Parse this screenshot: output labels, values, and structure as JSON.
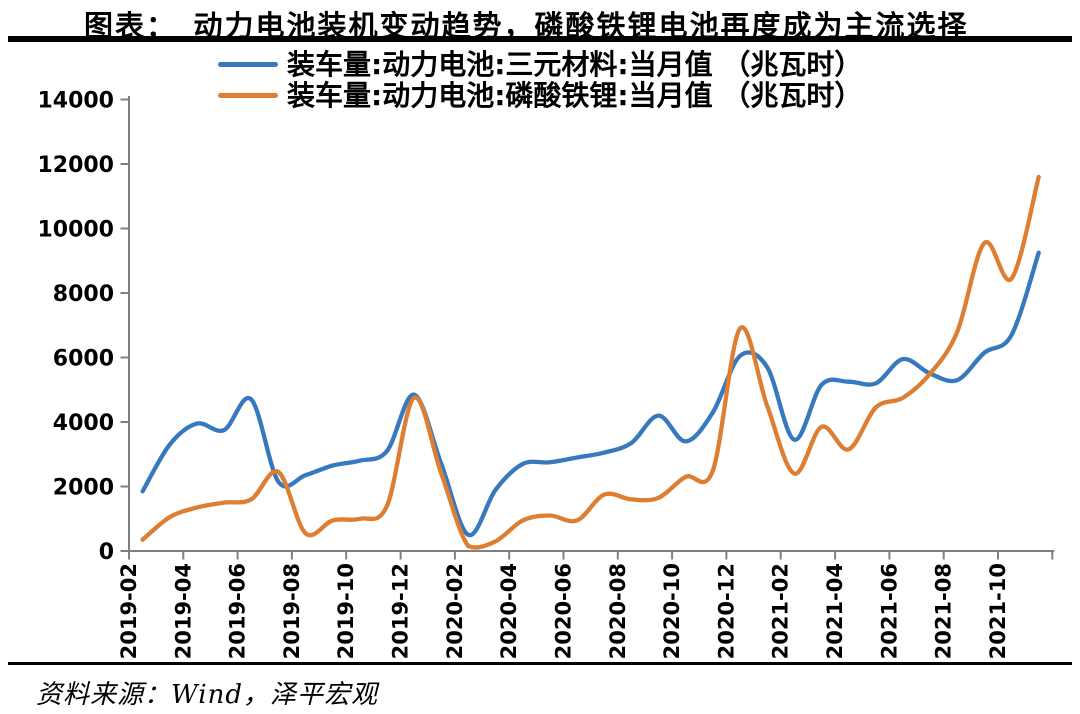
{
  "header": {
    "title": "图表：　动力电池装机变动趋势，磷酸铁锂电池再度成为主流选择"
  },
  "footer": {
    "source": "资料来源：Wind，泽平宏观"
  },
  "chart_data": {
    "type": "line",
    "title": "动力电池装机变动趋势，磷酸铁锂电池再度成为主流选择",
    "smooth": true,
    "grid": false,
    "legend_position": "top-left",
    "axis_color": "#7f7f7f",
    "ylim": [
      0,
      14000
    ],
    "y_ticks": [
      0,
      2000,
      4000,
      6000,
      8000,
      10000,
      12000,
      14000
    ],
    "x": [
      "2019-02",
      "2019-03",
      "2019-04",
      "2019-05",
      "2019-06",
      "2019-07",
      "2019-08",
      "2019-09",
      "2019-10",
      "2019-11",
      "2019-12",
      "2020-01",
      "2020-02",
      "2020-03",
      "2020-04",
      "2020-05",
      "2020-06",
      "2020-07",
      "2020-08",
      "2020-09",
      "2020-10",
      "2020-11",
      "2020-12",
      "2021-01",
      "2021-02",
      "2021-03",
      "2021-04",
      "2021-05",
      "2021-06",
      "2021-07",
      "2021-08",
      "2021-09",
      "2021-10",
      "2021-11"
    ],
    "x_tick_labels": [
      "2019-02",
      "2019-04",
      "2019-06",
      "2019-08",
      "2019-10",
      "2019-12",
      "2020-02",
      "2020-04",
      "2020-06",
      "2020-08",
      "2020-10",
      "2020-12",
      "2021-02",
      "2021-04",
      "2021-06",
      "2021-08",
      "2021-10"
    ],
    "series": [
      {
        "name": "装车量:动力电池:三元材料:当月值 （兆瓦时）",
        "color": "#3779BE",
        "values": [
          1850,
          3300,
          3950,
          3750,
          4700,
          2150,
          2350,
          2650,
          2800,
          3100,
          4850,
          2700,
          500,
          1900,
          2700,
          2750,
          2900,
          3050,
          3350,
          4200,
          3400,
          4300,
          6050,
          5700,
          3450,
          5150,
          5250,
          5200,
          5950,
          5500,
          5300,
          6150,
          6700,
          9250
        ]
      },
      {
        "name": "装车量:动力电池:磷酸铁锂:当月值 （兆瓦时）",
        "color": "#DD7E33",
        "values": [
          350,
          1050,
          1350,
          1500,
          1600,
          2450,
          550,
          950,
          1000,
          1400,
          4750,
          2400,
          150,
          300,
          950,
          1100,
          950,
          1750,
          1600,
          1650,
          2300,
          2500,
          6900,
          4500,
          2400,
          3850,
          3150,
          4450,
          4750,
          5500,
          6800,
          9550,
          8450,
          11600
        ]
      }
    ]
  }
}
